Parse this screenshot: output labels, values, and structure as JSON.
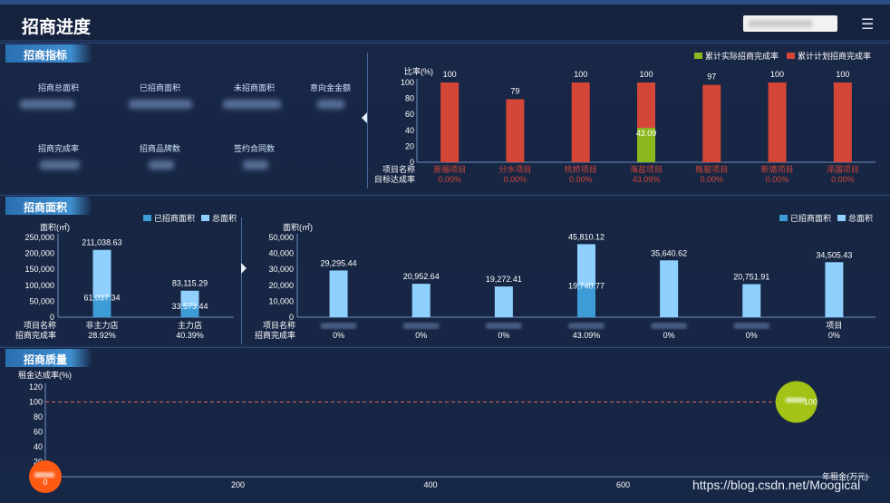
{
  "header": {
    "title": "招商进度",
    "menu_icon": "hamburger-icon"
  },
  "sections": {
    "indicators": "招商指标",
    "area": "招商面积",
    "quality": "招商质量"
  },
  "indicators": {
    "row1": [
      "招商总面积",
      "已招商面积",
      "未招商面积",
      "意向金金额"
    ],
    "row2": [
      "招商完成率",
      "招商品牌数",
      "签约合同数"
    ]
  },
  "chart_data": [
    {
      "type": "bar",
      "id": "completion",
      "ylabel": "比率(%)",
      "ylim": [
        0,
        100
      ],
      "yticks": [
        0,
        20,
        40,
        60,
        80,
        100
      ],
      "row_labels": [
        "项目名称",
        "目标达成率"
      ],
      "categories": [
        "崇福项目",
        "分水项目",
        "杭桥项目",
        "海盐项目",
        "瓶窑项目",
        "新塘项目",
        "泽国项目"
      ],
      "rates": [
        "0.00%",
        "0.00%",
        "0.00%",
        "43.09%",
        "0.00%",
        "0.00%",
        "0.00%"
      ],
      "series": [
        {
          "name": "累计计划招商完成率",
          "values": [
            100,
            79,
            100,
            100,
            97,
            100,
            100
          ]
        },
        {
          "name": "累计实际招商完成率",
          "values": [
            0,
            0,
            0,
            43.09,
            0,
            0,
            0
          ]
        }
      ],
      "series_labels": [
        "100",
        "79",
        "100",
        "100",
        "97",
        "100",
        "100"
      ],
      "actual_labels": [
        "",
        "",
        "",
        "43.09",
        "",
        "",
        ""
      ],
      "legend_placement": "top-right",
      "colors": {
        "plan": "#d44637",
        "actual": "#8cb81f"
      }
    },
    {
      "type": "bar",
      "id": "area_type",
      "ylabel": "面积(㎡)",
      "ylim": [
        0,
        250000
      ],
      "yticks": [
        "0",
        "50,000",
        "100,000",
        "150,000",
        "200,000",
        "250,000"
      ],
      "ytick_values": [
        0,
        50000,
        100000,
        150000,
        200000,
        250000
      ],
      "row_labels": [
        "项目名称",
        "招商完成率"
      ],
      "categories": [
        "非主力店",
        "主力店"
      ],
      "rates": [
        "28.92%",
        "40.39%"
      ],
      "series": [
        {
          "name": "已招商面积",
          "values": [
            61037.34,
            33573.44
          ]
        },
        {
          "name": "总面积",
          "values": [
            211038.63,
            83115.29
          ]
        }
      ],
      "total_labels": [
        "211,038.63",
        "83,115.29"
      ],
      "done_labels": [
        "61,037.34",
        "33,573.44"
      ],
      "legend_placement": "top-right",
      "colors": {
        "done": "#3d9bd6",
        "total": "#8fd0ff"
      }
    },
    {
      "type": "bar",
      "id": "area_project",
      "ylabel": "面积(㎡)",
      "ylim": [
        0,
        50000
      ],
      "yticks": [
        "0",
        "10,000",
        "20,000",
        "30,000",
        "40,000",
        "50,000"
      ],
      "ytick_values": [
        0,
        10000,
        20000,
        30000,
        40000,
        50000
      ],
      "row_labels": [
        "项目名称",
        "招商完成率"
      ],
      "categories": [
        "",
        "",
        "",
        "",
        "",
        "",
        "项目"
      ],
      "rates": [
        "0%",
        "0%",
        "0%",
        "43.09%",
        "0%",
        "0%",
        "0%"
      ],
      "series": [
        {
          "name": "已招商面积",
          "values": [
            0,
            0,
            0,
            19740.77,
            0,
            0,
            0
          ]
        },
        {
          "name": "总面积",
          "values": [
            29295.44,
            20952.64,
            19272.41,
            45810.12,
            35640.62,
            20751.91,
            34505.43
          ]
        }
      ],
      "total_labels": [
        "29,295.44",
        "20,952.64",
        "19,272.41",
        "45,810.12",
        "35,640.62",
        "20,751.91",
        "34,505.43"
      ],
      "done_labels": [
        "",
        "",
        "",
        "19,740.77",
        "",
        "",
        ""
      ],
      "legend_placement": "top-right",
      "colors": {
        "done": "#3d9bd6",
        "total": "#8fd0ff"
      }
    },
    {
      "type": "scatter",
      "id": "quality",
      "ylabel": "租金达成率(%)",
      "xlabel": "年租金(万元)",
      "ylim": [
        0,
        120
      ],
      "yticks": [
        0,
        20,
        40,
        60,
        80,
        100,
        120
      ],
      "xlim": [
        0,
        800
      ],
      "xticks": [
        200,
        400,
        600,
        800
      ],
      "xtick_labels": [
        "200",
        "400",
        "600",
        ""
      ],
      "reference_y": 100,
      "reference_label": "100",
      "points": [
        {
          "x": 0,
          "y": 0,
          "value_label": "0",
          "color": "#ff5a14"
        },
        {
          "x": 780,
          "y": 100,
          "value_label": "100",
          "color": "#a4c317"
        }
      ]
    }
  ],
  "watermark": "https://blog.csdn.net/Moogical"
}
